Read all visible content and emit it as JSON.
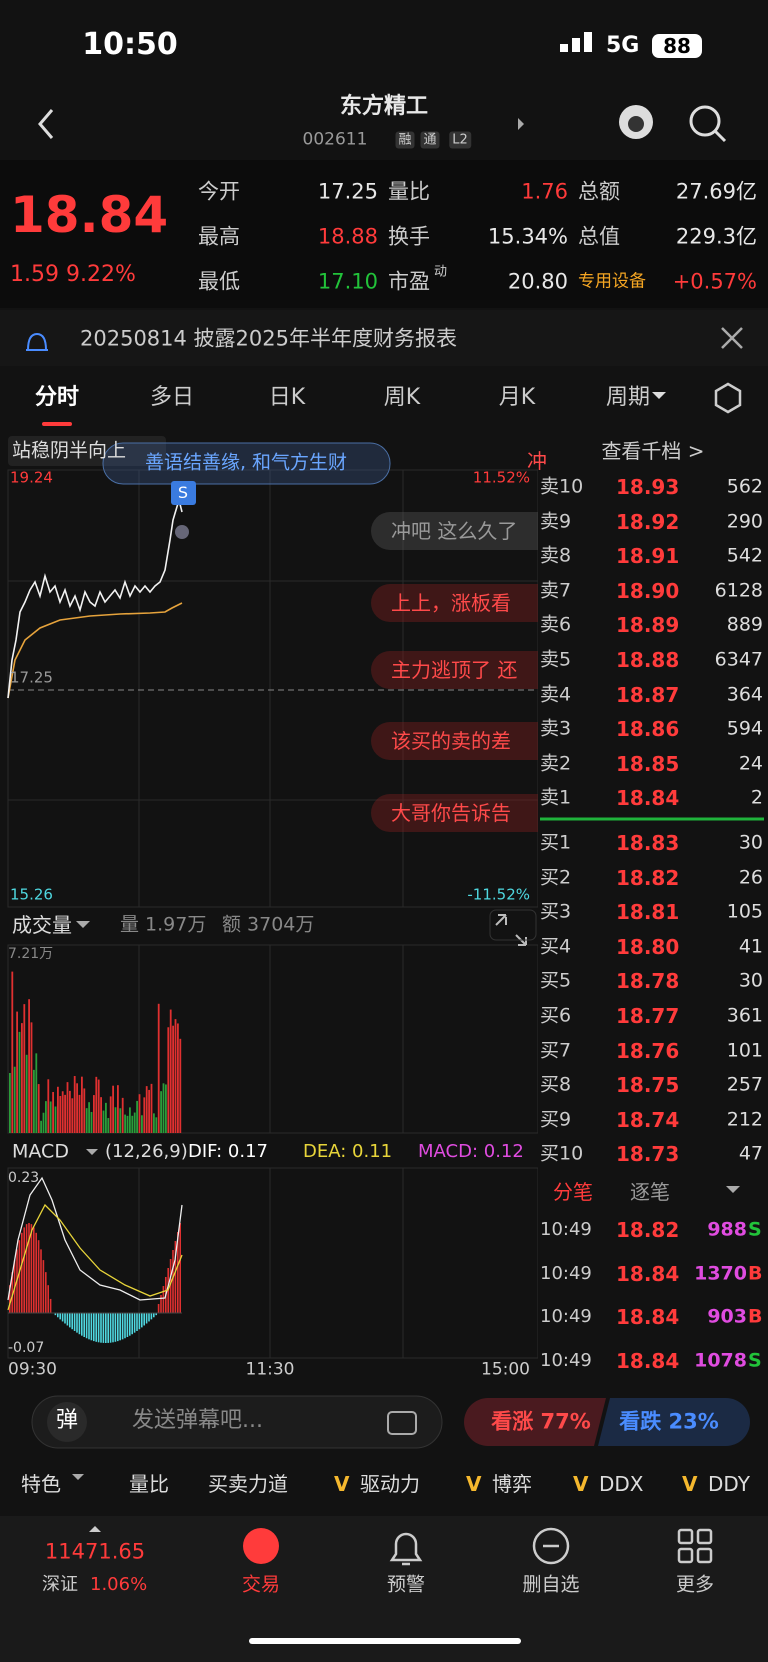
{
  "status_bar": {
    "time": "10:50",
    "network": "5G",
    "battery": "88"
  },
  "header": {
    "title": "东方精工",
    "code": "002611",
    "badges": [
      "融",
      "通",
      "L2"
    ]
  },
  "quote": {
    "price": "18.84",
    "change": "1.59",
    "change_pct": "9.22%",
    "stats": [
      [
        {
          "label": "今开",
          "value": "17.25"
        },
        {
          "label": "量比",
          "value": "1.76"
        },
        {
          "label": "总额",
          "value": "27.69亿"
        }
      ],
      [
        {
          "label": "最高",
          "value": "18.88"
        },
        {
          "label": "换手",
          "value": "15.34%"
        },
        {
          "label": "总值",
          "value": "229.3亿"
        }
      ],
      [
        {
          "label": "最低",
          "value": "17.10"
        },
        {
          "label": "市盈",
          "sup": "动",
          "value": "20.80"
        },
        {
          "label": "专用设备",
          "value": "+0.57%"
        }
      ]
    ]
  },
  "notice": "20250814 披露2025年半年度财务报表",
  "tabs": [
    "分时",
    "多日",
    "日K",
    "周K",
    "月K",
    "周期"
  ],
  "intraday": {
    "indicator": "站稳阴半向上",
    "danmaku": "善语结善缘, 和气方生财",
    "high_price": "19.24",
    "high_pct": "11.52%",
    "open_price": "17.25",
    "low_price": "15.26",
    "low_pct": "-11.52%",
    "marker": "S",
    "comments": [
      "冲",
      "冲吧 这么久了",
      "上上，涨板看",
      "主力逃顶了 还",
      "该买的卖的差",
      "大哥你告诉告"
    ]
  },
  "volume": {
    "title": "成交量",
    "volume": "量 1.97万",
    "amount": "额 3704万",
    "max": "7.21万"
  },
  "macd": {
    "title": "MACD",
    "params": "(12,26,9)",
    "dif": "DIF: 0.17",
    "dea": "DEA: 0.11",
    "macd": "MACD: 0.12",
    "max": "0.23",
    "min": "-0.07"
  },
  "time_axis": [
    "09:30",
    "11:30",
    "15:00"
  ],
  "order_book": {
    "title": "查看千档 >",
    "asks": [
      {
        "label": "卖10",
        "price": "18.93",
        "volume": "562"
      },
      {
        "label": "卖9",
        "price": "18.92",
        "volume": "290"
      },
      {
        "label": "卖8",
        "price": "18.91",
        "volume": "542"
      },
      {
        "label": "卖7",
        "price": "18.90",
        "volume": "6128"
      },
      {
        "label": "卖6",
        "price": "18.89",
        "volume": "889"
      },
      {
        "label": "卖5",
        "price": "18.88",
        "volume": "6347"
      },
      {
        "label": "卖4",
        "price": "18.87",
        "volume": "364"
      },
      {
        "label": "卖3",
        "price": "18.86",
        "volume": "594"
      },
      {
        "label": "卖2",
        "price": "18.85",
        "volume": "24"
      },
      {
        "label": "卖1",
        "price": "18.84",
        "volume": "2"
      }
    ],
    "bids": [
      {
        "label": "买1",
        "price": "18.83",
        "volume": "30"
      },
      {
        "label": "买2",
        "price": "18.82",
        "volume": "26"
      },
      {
        "label": "买3",
        "price": "18.81",
        "volume": "105"
      },
      {
        "label": "买4",
        "price": "18.80",
        "volume": "41"
      },
      {
        "label": "买5",
        "price": "18.78",
        "volume": "30"
      },
      {
        "label": "买6",
        "price": "18.77",
        "volume": "361"
      },
      {
        "label": "买7",
        "price": "18.76",
        "volume": "101"
      },
      {
        "label": "买8",
        "price": "18.75",
        "volume": "257"
      },
      {
        "label": "买9",
        "price": "18.74",
        "volume": "212"
      },
      {
        "label": "买10",
        "price": "18.73",
        "volume": "47"
      }
    ]
  },
  "trades": {
    "tabs": [
      "分笔",
      "逐笔"
    ],
    "rows": [
      {
        "time": "10:49",
        "price": "18.82",
        "volume": "988",
        "side": "S"
      },
      {
        "time": "10:49",
        "price": "18.84",
        "volume": "1370",
        "side": "B"
      },
      {
        "time": "10:49",
        "price": "18.84",
        "volume": "903",
        "side": "B"
      },
      {
        "time": "10:49",
        "price": "18.84",
        "volume": "1078",
        "side": "S"
      }
    ]
  },
  "danmaku_bar": {
    "badge": "弹",
    "placeholder": "发送弹幕吧...",
    "bull": "看涨 77%",
    "bear": "看跌 23%"
  },
  "toolbar": [
    {
      "label": "特色"
    },
    {
      "label": "量比"
    },
    {
      "label": "买卖力道"
    },
    {
      "prefix": "V",
      "label": "驱动力"
    },
    {
      "prefix": "V",
      "label": "博弈"
    },
    {
      "prefix": "V",
      "label": "DDX"
    },
    {
      "prefix": "V",
      "label": "DDY"
    }
  ],
  "index": {
    "value": "11471.65",
    "name": "深证",
    "change": "1.06%"
  },
  "nav": [
    "交易",
    "预警",
    "删自选",
    "更多"
  ]
}
